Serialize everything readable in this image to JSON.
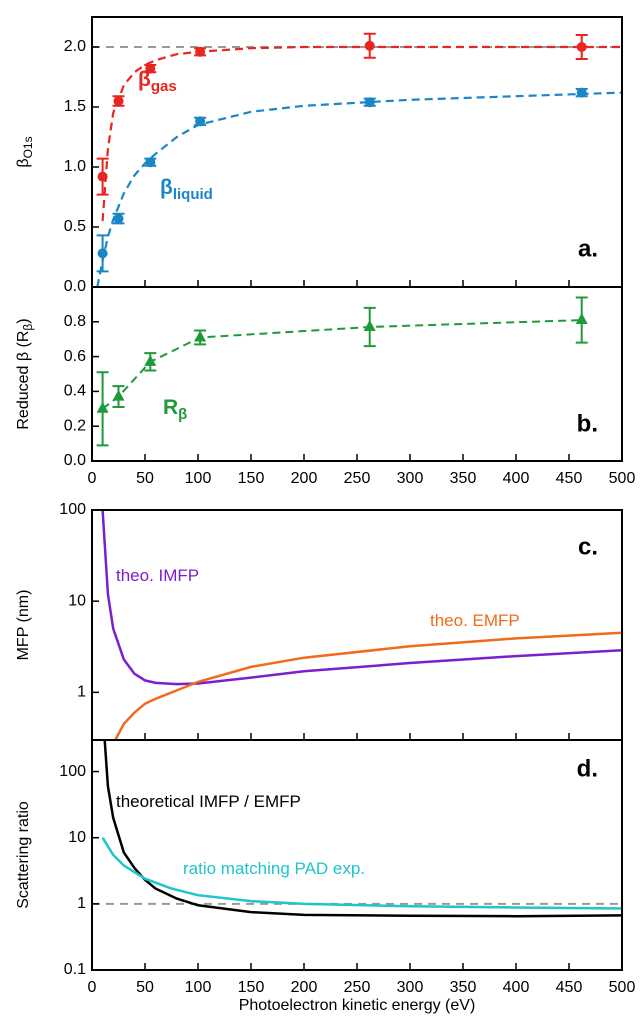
{
  "chart_data": [
    {
      "type": "scatter",
      "label": "a.",
      "ylabel": [
        {
          "text": "β"
        },
        {
          "text": "O1s",
          "sub": true
        }
      ],
      "xlim": [
        0,
        500
      ],
      "xticks": [
        0,
        50,
        100,
        150,
        200,
        250,
        300,
        350,
        400,
        450,
        500
      ],
      "xtick_labels": false,
      "ylim": [
        0,
        2.25
      ],
      "yticks": [
        {
          "value": 0,
          "label": "0.0"
        },
        0.5,
        {
          "value": 1,
          "label": "1.0"
        },
        1.5,
        {
          "value": 2,
          "label": "2.0"
        }
      ],
      "ref_line": 2.0,
      "series": [
        {
          "name": "β",
          "name_sub": "gas",
          "color": "#e8251f",
          "marker": "circle",
          "x": [
            10,
            25,
            55,
            102,
            262,
            462
          ],
          "values": [
            0.92,
            1.55,
            1.82,
            1.96,
            2.01,
            2.0
          ],
          "errors": [
            0.15,
            0.04,
            0.03,
            0.03,
            0.1,
            0.1
          ],
          "fit": {
            "x": [
              10,
              15,
              20,
              30,
              40,
              50,
              60,
              80,
              100,
              150,
              200,
              300,
              400,
              500
            ],
            "values": [
              0.55,
              1.15,
              1.45,
              1.68,
              1.79,
              1.85,
              1.89,
              1.94,
              1.96,
              1.99,
              2.0,
              2.0,
              2.0,
              2.0
            ]
          }
        },
        {
          "name": "β",
          "name_sub": "liquid",
          "color": "#1a86c7",
          "marker": "circle",
          "x": [
            10,
            25,
            55,
            102,
            262,
            462
          ],
          "values": [
            0.28,
            0.57,
            1.04,
            1.38,
            1.54,
            1.62
          ],
          "errors": [
            0.15,
            0.04,
            0.03,
            0.03,
            0.03,
            0.03
          ],
          "fit": {
            "x": [
              5,
              10,
              15,
              20,
              30,
              40,
              50,
              60,
              80,
              100,
              150,
              200,
              300,
              400,
              500
            ],
            "values": [
              0,
              0.22,
              0.42,
              0.56,
              0.78,
              0.93,
              1.03,
              1.11,
              1.25,
              1.35,
              1.46,
              1.51,
              1.56,
              1.59,
              1.62
            ]
          }
        }
      ]
    },
    {
      "type": "scatter",
      "label": "b.",
      "ylabel": [
        {
          "text": "Reduced β (R"
        },
        {
          "text": "β",
          "sub": true
        },
        {
          "text": ")"
        }
      ],
      "xlim": [
        0,
        500
      ],
      "xticks": [
        0,
        50,
        100,
        150,
        200,
        250,
        300,
        350,
        400,
        450,
        500
      ],
      "xtick_labels": true,
      "ylim": [
        0,
        1.0
      ],
      "yticks": [
        {
          "value": 0,
          "label": "0.0"
        },
        0.2,
        0.4,
        0.6,
        0.8
      ],
      "connect": true,
      "series": [
        {
          "name": "R",
          "name_sub": "β",
          "color": "#1f9a3a",
          "marker": "triangle",
          "x": [
            10,
            25,
            55,
            102,
            262,
            462
          ],
          "values": [
            0.3,
            0.37,
            0.57,
            0.71,
            0.77,
            0.81
          ],
          "errors": [
            0.21,
            0.06,
            0.05,
            0.04,
            0.11,
            0.13
          ]
        }
      ]
    },
    {
      "type": "line",
      "label": "c.",
      "ylabel": [
        {
          "text": "MFP (nm)"
        }
      ],
      "log": true,
      "xlim": [
        0,
        500
      ],
      "xticks": [
        0,
        50,
        100,
        150,
        200,
        250,
        300,
        350,
        400,
        450,
        500
      ],
      "xtick_labels": false,
      "ylim": [
        0.3,
        100
      ],
      "yticks": [
        1,
        10,
        100
      ],
      "series": [
        {
          "name": "theo. IMFP",
          "color": "#7a1fd0",
          "x": [
            10,
            15,
            20,
            30,
            40,
            50,
            60,
            80,
            100,
            150,
            200,
            300,
            400,
            500
          ],
          "values": [
            100,
            12,
            5,
            2.3,
            1.6,
            1.35,
            1.27,
            1.23,
            1.25,
            1.45,
            1.7,
            2.1,
            2.5,
            2.9
          ]
        },
        {
          "name": "theo. EMFP",
          "color": "#f26a1b",
          "x": [
            22,
            30,
            40,
            50,
            60,
            80,
            100,
            150,
            200,
            300,
            400,
            500
          ],
          "values": [
            0.3,
            0.45,
            0.6,
            0.75,
            0.85,
            1.05,
            1.3,
            1.9,
            2.4,
            3.2,
            3.9,
            4.5
          ]
        }
      ]
    },
    {
      "type": "line",
      "label": "d.",
      "ylabel": [
        {
          "text": "Scattering ratio"
        }
      ],
      "log": true,
      "xlabel": "Photoelectron kinetic energy (eV)",
      "xlim": [
        0,
        500
      ],
      "xticks": [
        0,
        50,
        100,
        150,
        200,
        250,
        300,
        350,
        400,
        450,
        500
      ],
      "xtick_labels": true,
      "ylim": [
        0.1,
        300
      ],
      "yticks": [
        0.1,
        1,
        10,
        100
      ],
      "ref_line": 1,
      "series": [
        {
          "name": "theoretical IMFP / EMFP",
          "color": "#000000",
          "x": [
            12,
            15,
            20,
            30,
            40,
            50,
            60,
            80,
            100,
            150,
            200,
            300,
            400,
            500
          ],
          "values": [
            300,
            60,
            20,
            6,
            3.5,
            2.3,
            1.7,
            1.2,
            0.95,
            0.75,
            0.68,
            0.66,
            0.65,
            0.67
          ]
        },
        {
          "name": "ratio matching PAD exp.",
          "color": "#1fc4cc",
          "x": [
            10,
            20,
            30,
            50,
            75,
            100,
            150,
            200,
            300,
            400,
            500
          ],
          "values": [
            10,
            5.5,
            3.8,
            2.4,
            1.7,
            1.35,
            1.1,
            1.0,
            0.92,
            0.88,
            0.85
          ]
        }
      ]
    }
  ]
}
